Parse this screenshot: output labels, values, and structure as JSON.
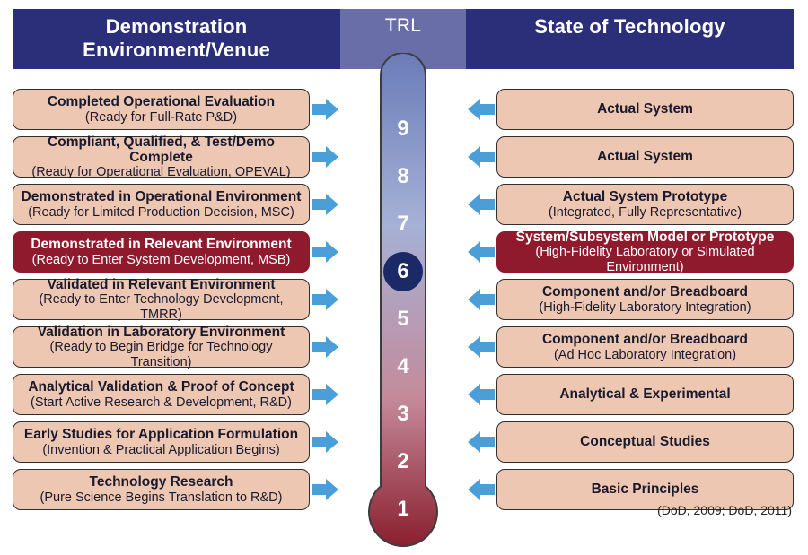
{
  "headers": {
    "left": "Demonstration Environment/Venue",
    "center": "TRL",
    "right": "State of Technology"
  },
  "source": "(DoD, 2009; DoD, 2011)",
  "colors": {
    "header_side_bg": "#2b2f7a",
    "header_center_bg": "#6a6ea8",
    "box_bg": "#eec7b2",
    "box_text": "#1a1a2e",
    "box_highlight_bg": "#8f1a2d",
    "box_highlight_text": "#ffffff",
    "arrow_fill": "#4a9fd8",
    "number_text": "#ffffff",
    "circle_bg": "#1b2a66",
    "thermo_top": "#6a7cb8",
    "thermo_mid": "#a6b1d6",
    "thermo_lowmid": "#c48a9a",
    "thermo_bottom": "#8a1f2f",
    "bulb": "#8a1f2f",
    "thermo_border": "#3d3d3d"
  },
  "highlight_index": 3,
  "rows": [
    {
      "n": "9",
      "left_t": "Completed Operational Evaluation",
      "left_s": "(Ready for Full-Rate P&D)",
      "right_t": "Actual System",
      "right_s": ""
    },
    {
      "n": "8",
      "left_t": "Compliant, Qualified, & Test/Demo Complete",
      "left_s": "(Ready for Operational Evaluation, OPEVAL)",
      "right_t": "Actual System",
      "right_s": ""
    },
    {
      "n": "7",
      "left_t": "Demonstrated in Operational Environment",
      "left_s": "(Ready for Limited Production Decision, MSC)",
      "right_t": "Actual System Prototype",
      "right_s": "(Integrated, Fully Representative)"
    },
    {
      "n": "6",
      "left_t": "Demonstrated in Relevant Environment",
      "left_s": "(Ready to Enter System Development, MSB)",
      "right_t": "System/Subsystem Model or Prototype",
      "right_s": "(High-Fidelity Laboratory or Simulated Environment)"
    },
    {
      "n": "5",
      "left_t": "Validated in Relevant Environment",
      "left_s": "(Ready to Enter Technology Development, TMRR)",
      "right_t": "Component and/or Breadboard",
      "right_s": "(High-Fidelity Laboratory Integration)"
    },
    {
      "n": "4",
      "left_t": "Validation in Laboratory Environment",
      "left_s": "(Ready to Begin Bridge for Technology Transition)",
      "right_t": "Component and/or Breadboard",
      "right_s": "(Ad Hoc Laboratory Integration)"
    },
    {
      "n": "3",
      "left_t": "Analytical Validation & Proof of Concept",
      "left_s": "(Start Active Research & Development, R&D)",
      "right_t": "Analytical & Experimental",
      "right_s": ""
    },
    {
      "n": "2",
      "left_t": "Early Studies for Application Formulation",
      "left_s": "(Invention & Practical Application Begins)",
      "right_t": "Conceptual Studies",
      "right_s": ""
    },
    {
      "n": "1",
      "left_t": "Technology Research",
      "left_s": "(Pure Science Begins Translation to R&D)",
      "right_t": "Basic Principles",
      "right_s": ""
    }
  ],
  "thermometer": {
    "tube_width": 50,
    "bulb_radius": 38
  }
}
